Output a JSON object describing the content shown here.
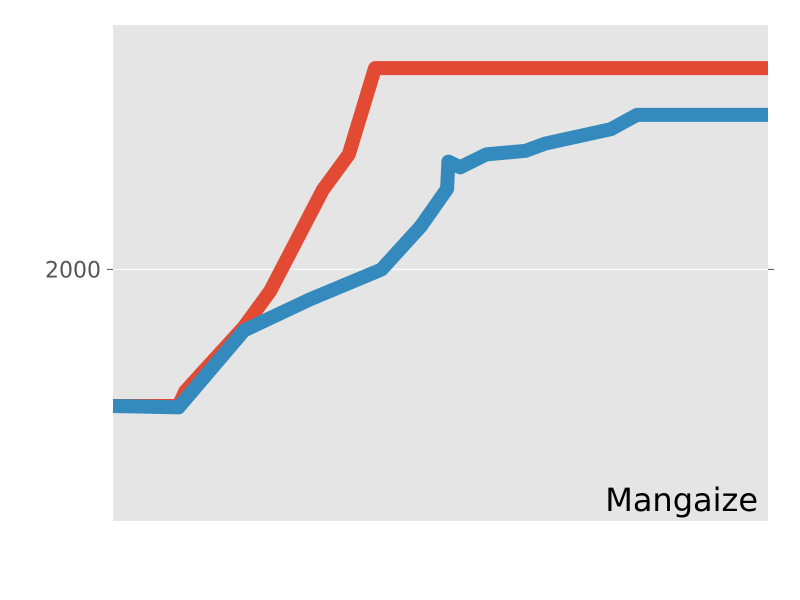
{
  "chart_data": {
    "type": "line",
    "title": "",
    "xlabel": "",
    "ylabel": "",
    "xlim": [
      0,
      100
    ],
    "ylim": [
      1650,
      2340
    ],
    "yticks": [
      2000
    ],
    "grid": true,
    "annotation": "Mangaize",
    "colors": {
      "background": "#e5e5e5",
      "grid": "#ffffff"
    },
    "series": [
      {
        "color": "#e24a33",
        "points": [
          [
            0,
            1810
          ],
          [
            10,
            1810
          ],
          [
            11,
            1830
          ],
          [
            14,
            1860
          ],
          [
            17,
            1890
          ],
          [
            20,
            1920
          ],
          [
            24,
            1970
          ],
          [
            28,
            2040
          ],
          [
            32,
            2110
          ],
          [
            36,
            2160
          ],
          [
            40,
            2280
          ],
          [
            45,
            2280
          ],
          [
            60,
            2280
          ],
          [
            80,
            2280
          ],
          [
            100,
            2280
          ]
        ]
      },
      {
        "color": "#348abd",
        "points": [
          [
            0,
            1810
          ],
          [
            10,
            1808
          ],
          [
            20,
            1915
          ],
          [
            30,
            1958
          ],
          [
            41,
            2000
          ],
          [
            47,
            2060
          ],
          [
            51,
            2112
          ],
          [
            51.2,
            2150
          ],
          [
            53,
            2142
          ],
          [
            57,
            2160
          ],
          [
            63,
            2165
          ],
          [
            66,
            2175
          ],
          [
            76,
            2195
          ],
          [
            80,
            2215
          ],
          [
            90,
            2215
          ],
          [
            100,
            2215
          ]
        ]
      }
    ]
  }
}
